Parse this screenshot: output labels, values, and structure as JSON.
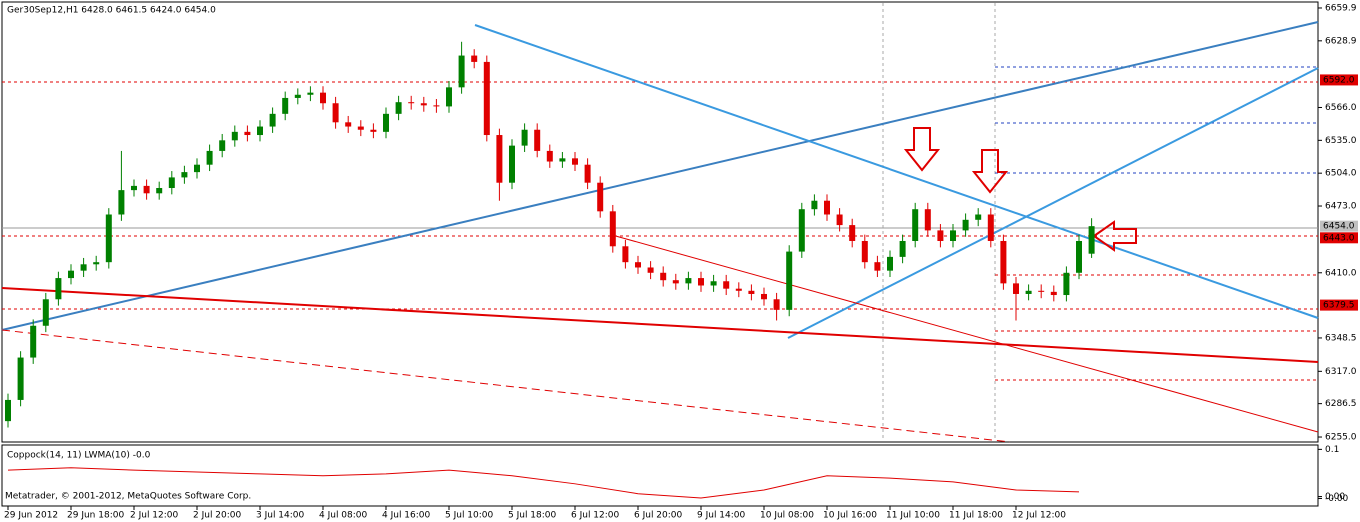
{
  "footer": "Metatrader, © 2001-2012, MetaQuotes Software Corp.",
  "chart_data": [
    {
      "type": "candlestick",
      "title": "Ger30Sep12,H1  6428.0 6461.5 6424.0 6454.0",
      "categories": [
        "29 Jun 2012",
        null,
        null,
        null,
        null,
        "29 Jun 18:00",
        null,
        null,
        null,
        null,
        "2 Jul 12:00",
        null,
        null,
        null,
        null,
        "2 Jul 20:00",
        null,
        null,
        null,
        null,
        "3 Jul 14:00",
        null,
        null,
        null,
        null,
        "4 Jul 08:00",
        null,
        null,
        null,
        null,
        "4 Jul 16:00",
        null,
        null,
        null,
        null,
        "5 Jul 10:00",
        null,
        null,
        null,
        null,
        "5 Jul 18:00",
        null,
        null,
        null,
        null,
        "6 Jul 12:00",
        null,
        null,
        null,
        null,
        "6 Jul 20:00",
        null,
        null,
        null,
        null,
        "9 Jul 14:00",
        null,
        null,
        null,
        null,
        "10 Jul 08:00",
        null,
        null,
        null,
        null,
        "10 Jul 16:00",
        null,
        null,
        null,
        null,
        "11 Jul 10:00",
        null,
        null,
        null,
        null,
        "11 Jul 18:00",
        null,
        null,
        null,
        null,
        "12 Jul 12:00",
        null,
        null,
        null,
        null,
        null,
        null
      ],
      "open": [
        6270,
        6290,
        6330,
        6360,
        6385,
        6405,
        6412,
        6418,
        6420,
        6465,
        6488,
        6492,
        6485,
        6490,
        6500,
        6505,
        6512,
        6525,
        6535,
        6543,
        6540,
        6548,
        6560,
        6575,
        6578,
        6580,
        6570,
        6552,
        6548,
        6545,
        6543,
        6560,
        6571,
        6570,
        6568,
        6567,
        6585,
        6615,
        6609,
        6540,
        6495,
        6530,
        6545,
        6525,
        6515,
        6518,
        6512,
        6495,
        6468,
        6435,
        6420,
        6415,
        6410,
        6403,
        6400,
        6405,
        6398,
        6402,
        6395,
        6393,
        6390,
        6385,
        6375,
        6430,
        6470,
        6478,
        6465,
        6455,
        6440,
        6420,
        6412,
        6425,
        6440,
        6470,
        6450,
        6440,
        6450,
        6460,
        6465,
        6440,
        6400,
        6390,
        6393,
        6392,
        6389,
        6410,
        6428
      ],
      "high": [
        6296,
        6336,
        6366,
        6391,
        6411,
        6418,
        6424,
        6426,
        6471,
        6525,
        6498,
        6498,
        6496,
        6506,
        6511,
        6518,
        6531,
        6541,
        6549,
        6549,
        6554,
        6566,
        6581,
        6584,
        6586,
        6586,
        6576,
        6558,
        6554,
        6551,
        6566,
        6577,
        6577,
        6576,
        6574,
        6591,
        6628,
        6621,
        6615,
        6546,
        6536,
        6551,
        6551,
        6531,
        6524,
        6524,
        6518,
        6501,
        6474,
        6441,
        6426,
        6421,
        6416,
        6409,
        6411,
        6411,
        6408,
        6408,
        6401,
        6399,
        6396,
        6391,
        6436,
        6476,
        6484,
        6484,
        6471,
        6461,
        6446,
        6426,
        6431,
        6446,
        6476,
        6476,
        6456,
        6456,
        6466,
        6471,
        6471,
        6446,
        6406,
        6399,
        6399,
        6398,
        6416,
        6446,
        6461.5
      ],
      "low": [
        6264,
        6284,
        6324,
        6354,
        6379,
        6399,
        6406,
        6412,
        6414,
        6459,
        6482,
        6479,
        6479,
        6484,
        6494,
        6499,
        6506,
        6519,
        6529,
        6534,
        6534,
        6542,
        6554,
        6569,
        6572,
        6564,
        6546,
        6542,
        6539,
        6537,
        6537,
        6554,
        6564,
        6562,
        6561,
        6561,
        6579,
        6603,
        6534,
        6478,
        6489,
        6524,
        6519,
        6509,
        6509,
        6506,
        6489,
        6462,
        6429,
        6414,
        6409,
        6404,
        6397,
        6394,
        6394,
        6392,
        6392,
        6389,
        6387,
        6384,
        6379,
        6365,
        6369,
        6424,
        6464,
        6459,
        6449,
        6434,
        6414,
        6406,
        6406,
        6419,
        6434,
        6444,
        6434,
        6434,
        6444,
        6454,
        6434,
        6394,
        6365,
        6384,
        6386,
        6383,
        6383,
        6404,
        6424
      ],
      "close": [
        6290,
        6330,
        6360,
        6385,
        6405,
        6412,
        6418,
        6420,
        6465,
        6488,
        6492,
        6485,
        6490,
        6500,
        6505,
        6512,
        6525,
        6535,
        6543,
        6540,
        6548,
        6560,
        6575,
        6578,
        6580,
        6570,
        6552,
        6548,
        6545,
        6543,
        6560,
        6571,
        6570,
        6568,
        6567,
        6585,
        6615,
        6609,
        6540,
        6495,
        6530,
        6545,
        6525,
        6515,
        6518,
        6512,
        6495,
        6468,
        6435,
        6420,
        6415,
        6410,
        6403,
        6400,
        6405,
        6398,
        6402,
        6395,
        6393,
        6390,
        6385,
        6375,
        6430,
        6470,
        6478,
        6465,
        6455,
        6440,
        6420,
        6412,
        6425,
        6440,
        6470,
        6450,
        6440,
        6450,
        6460,
        6465,
        6440,
        6400,
        6390,
        6393,
        6392,
        6389,
        6410,
        6440,
        6454
      ],
      "up_color": "#008000",
      "down_color": "#e00000",
      "ylim": [
        6250.3,
        6664.6
      ],
      "yticks": [
        6659.9,
        6628.9,
        {
          "value": 6566,
          "label": "6566.0"
        },
        {
          "value": 6535,
          "label": "6535.0"
        },
        {
          "value": 6504,
          "label": "6504.0"
        },
        {
          "value": 6473,
          "label": "6473.0"
        },
        {
          "value": 6410,
          "label": "6410.0"
        },
        6348.5,
        {
          "value": 6317,
          "label": "6317.0"
        },
        6286.5,
        {
          "value": 6255,
          "label": "6255.0"
        }
      ],
      "levels": [
        {
          "value": 6592,
          "label": "6592.0",
          "color": "#e00000"
        },
        {
          "value": 6454,
          "label": "6454.0",
          "color": "#c0c0c0"
        },
        {
          "value": 6443,
          "label": "6443.0",
          "color": "#e00000"
        },
        {
          "value": 6379.5,
          "label": "6379.5",
          "color": "#e00000"
        }
      ]
    },
    {
      "type": "line",
      "title": "Coppock(14, 11) LWMA(10) -0.0",
      "x": [
        0,
        5,
        10,
        15,
        20,
        25,
        30,
        35,
        40,
        45,
        50,
        55,
        60,
        65,
        70,
        75,
        80,
        85
      ],
      "values": [
        0.056,
        0.061,
        0.056,
        0.052,
        0.048,
        0.044,
        0.048,
        0.056,
        0.044,
        0.027,
        0.006,
        -0.003,
        0.014,
        0.044,
        0.039,
        0.031,
        0.014,
        0.01
      ],
      "color": "#e00000",
      "ylim": [
        -0.02,
        0.105
      ],
      "yticks": [
        0.1,
        {
          "value": 0,
          "label": "0.00"
        },
        {
          "value": -0.004,
          "label": "-0.00"
        }
      ]
    }
  ]
}
